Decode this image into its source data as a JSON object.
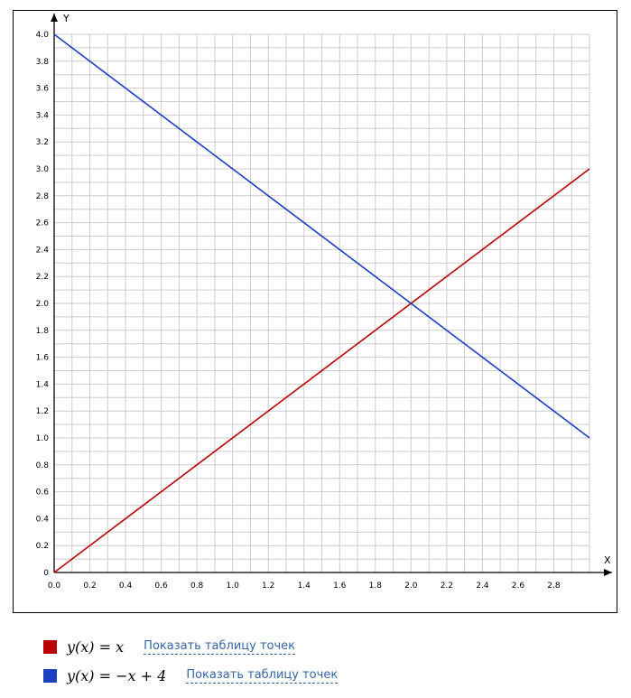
{
  "chart_data": {
    "type": "line",
    "xlabel": "X",
    "ylabel": "Y",
    "xlim": [
      0,
      3.0
    ],
    "ylim": [
      0,
      4.0
    ],
    "grid": true,
    "x_ticks": [
      "0.0",
      "0.2",
      "0.4",
      "0.6",
      "0.8",
      "1.0",
      "1.2",
      "1.4",
      "1.6",
      "1.8",
      "2.0",
      "2.2",
      "2.4",
      "2.6",
      "2.8"
    ],
    "y_ticks": [
      "0",
      "0.2",
      "0.4",
      "0.6",
      "0.8",
      "1.0",
      "1.2",
      "1.4",
      "1.6",
      "1.8",
      "2.0",
      "2.2",
      "2.4",
      "2.6",
      "2.8",
      "3.0",
      "3.2",
      "3.4",
      "3.6",
      "3.8",
      "4.0"
    ],
    "series": [
      {
        "color": "#bb0000",
        "x": [
          0,
          3.0
        ],
        "y": [
          0,
          3.0
        ]
      },
      {
        "color": "#1a3fbf",
        "x": [
          0,
          3.0
        ],
        "y": [
          4.0,
          1.0
        ]
      }
    ]
  },
  "legend": [
    {
      "lhs": "y(x)",
      "eq": "=",
      "rhs": "x",
      "link": "Показать таблицу точек",
      "color": "#bb0000"
    },
    {
      "lhs": "y(x)",
      "eq": "=",
      "rhs": "−x + 4",
      "link": "Показать таблицу точек",
      "color": "#1a3fbf"
    }
  ]
}
